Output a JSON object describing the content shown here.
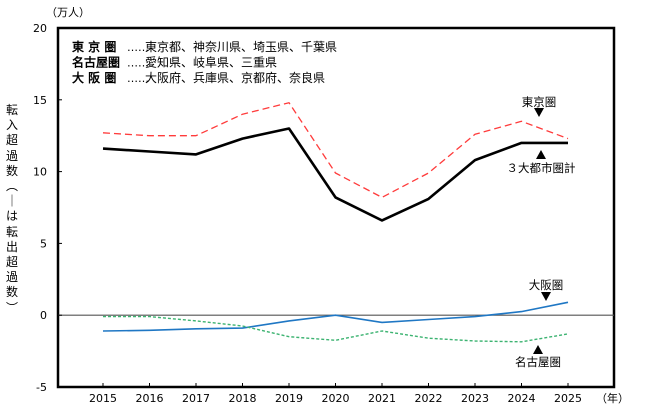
{
  "chart_data": {
    "type": "line",
    "title": "",
    "unit_label": "（万人）",
    "xlabel": "（年）",
    "ylabel": "転入超過数（－は転出超過数）",
    "x": [
      "2015",
      "2016",
      "2017",
      "2018",
      "2019",
      "2020",
      "2021",
      "2022",
      "2023",
      "2024",
      "2025"
    ],
    "ylim": [
      -5,
      20
    ],
    "yticks": [
      "20",
      "15",
      "10",
      "5",
      "0",
      "-5"
    ],
    "ytick_values": [
      20,
      15,
      10,
      5,
      0,
      -5
    ],
    "grid": false,
    "zero_line": true,
    "series": [
      {
        "name": "東京圏",
        "style": "dashed",
        "color": "#ff3b3b",
        "values": [
          12.7,
          12.5,
          12.5,
          14.0,
          14.8,
          9.9,
          8.2,
          9.9,
          12.6,
          13.5,
          12.3
        ]
      },
      {
        "name": "3大都市圏計",
        "style": "solid-thick",
        "color": "#000000",
        "values": [
          11.6,
          11.4,
          11.2,
          12.3,
          13.0,
          8.2,
          6.6,
          8.1,
          10.8,
          12.0,
          12.0
        ]
      },
      {
        "name": "大阪圏",
        "style": "solid",
        "color": "#1f77c4",
        "values": [
          -1.1,
          -1.05,
          -0.95,
          -0.9,
          -0.4,
          0.0,
          -0.5,
          -0.3,
          -0.1,
          0.25,
          0.9
        ]
      },
      {
        "name": "名古屋圏",
        "style": "dotted",
        "color": "#3cb371",
        "values": [
          -0.1,
          -0.1,
          -0.4,
          -0.75,
          -1.5,
          -1.75,
          -1.1,
          -1.6,
          -1.8,
          -1.85,
          -1.3
        ]
      }
    ],
    "annotations": [
      {
        "text": "東京圏",
        "marker": "down-triangle",
        "target_series": "東京圏"
      },
      {
        "text": "３大都市圏計",
        "marker": "up-triangle",
        "target_series": "3大都市圏計"
      },
      {
        "text": "大阪圏",
        "marker": "down-triangle",
        "target_series": "大阪圏"
      },
      {
        "text": "名古屋圏",
        "marker": "up-triangle",
        "target_series": "名古屋圏"
      }
    ],
    "legend_box": {
      "placement": "top-left",
      "rows": [
        {
          "region": "東 京 圏",
          "sep": "……",
          "members": "東京都、神奈川県、埼玉県、千葉県"
        },
        {
          "region": "名古屋圏",
          "sep": "……",
          "members": "愛知県、岐阜県、三重県"
        },
        {
          "region": "大 阪 圏",
          "sep": "……",
          "members": "大阪府、兵庫県、京都府、奈良県"
        }
      ]
    }
  }
}
